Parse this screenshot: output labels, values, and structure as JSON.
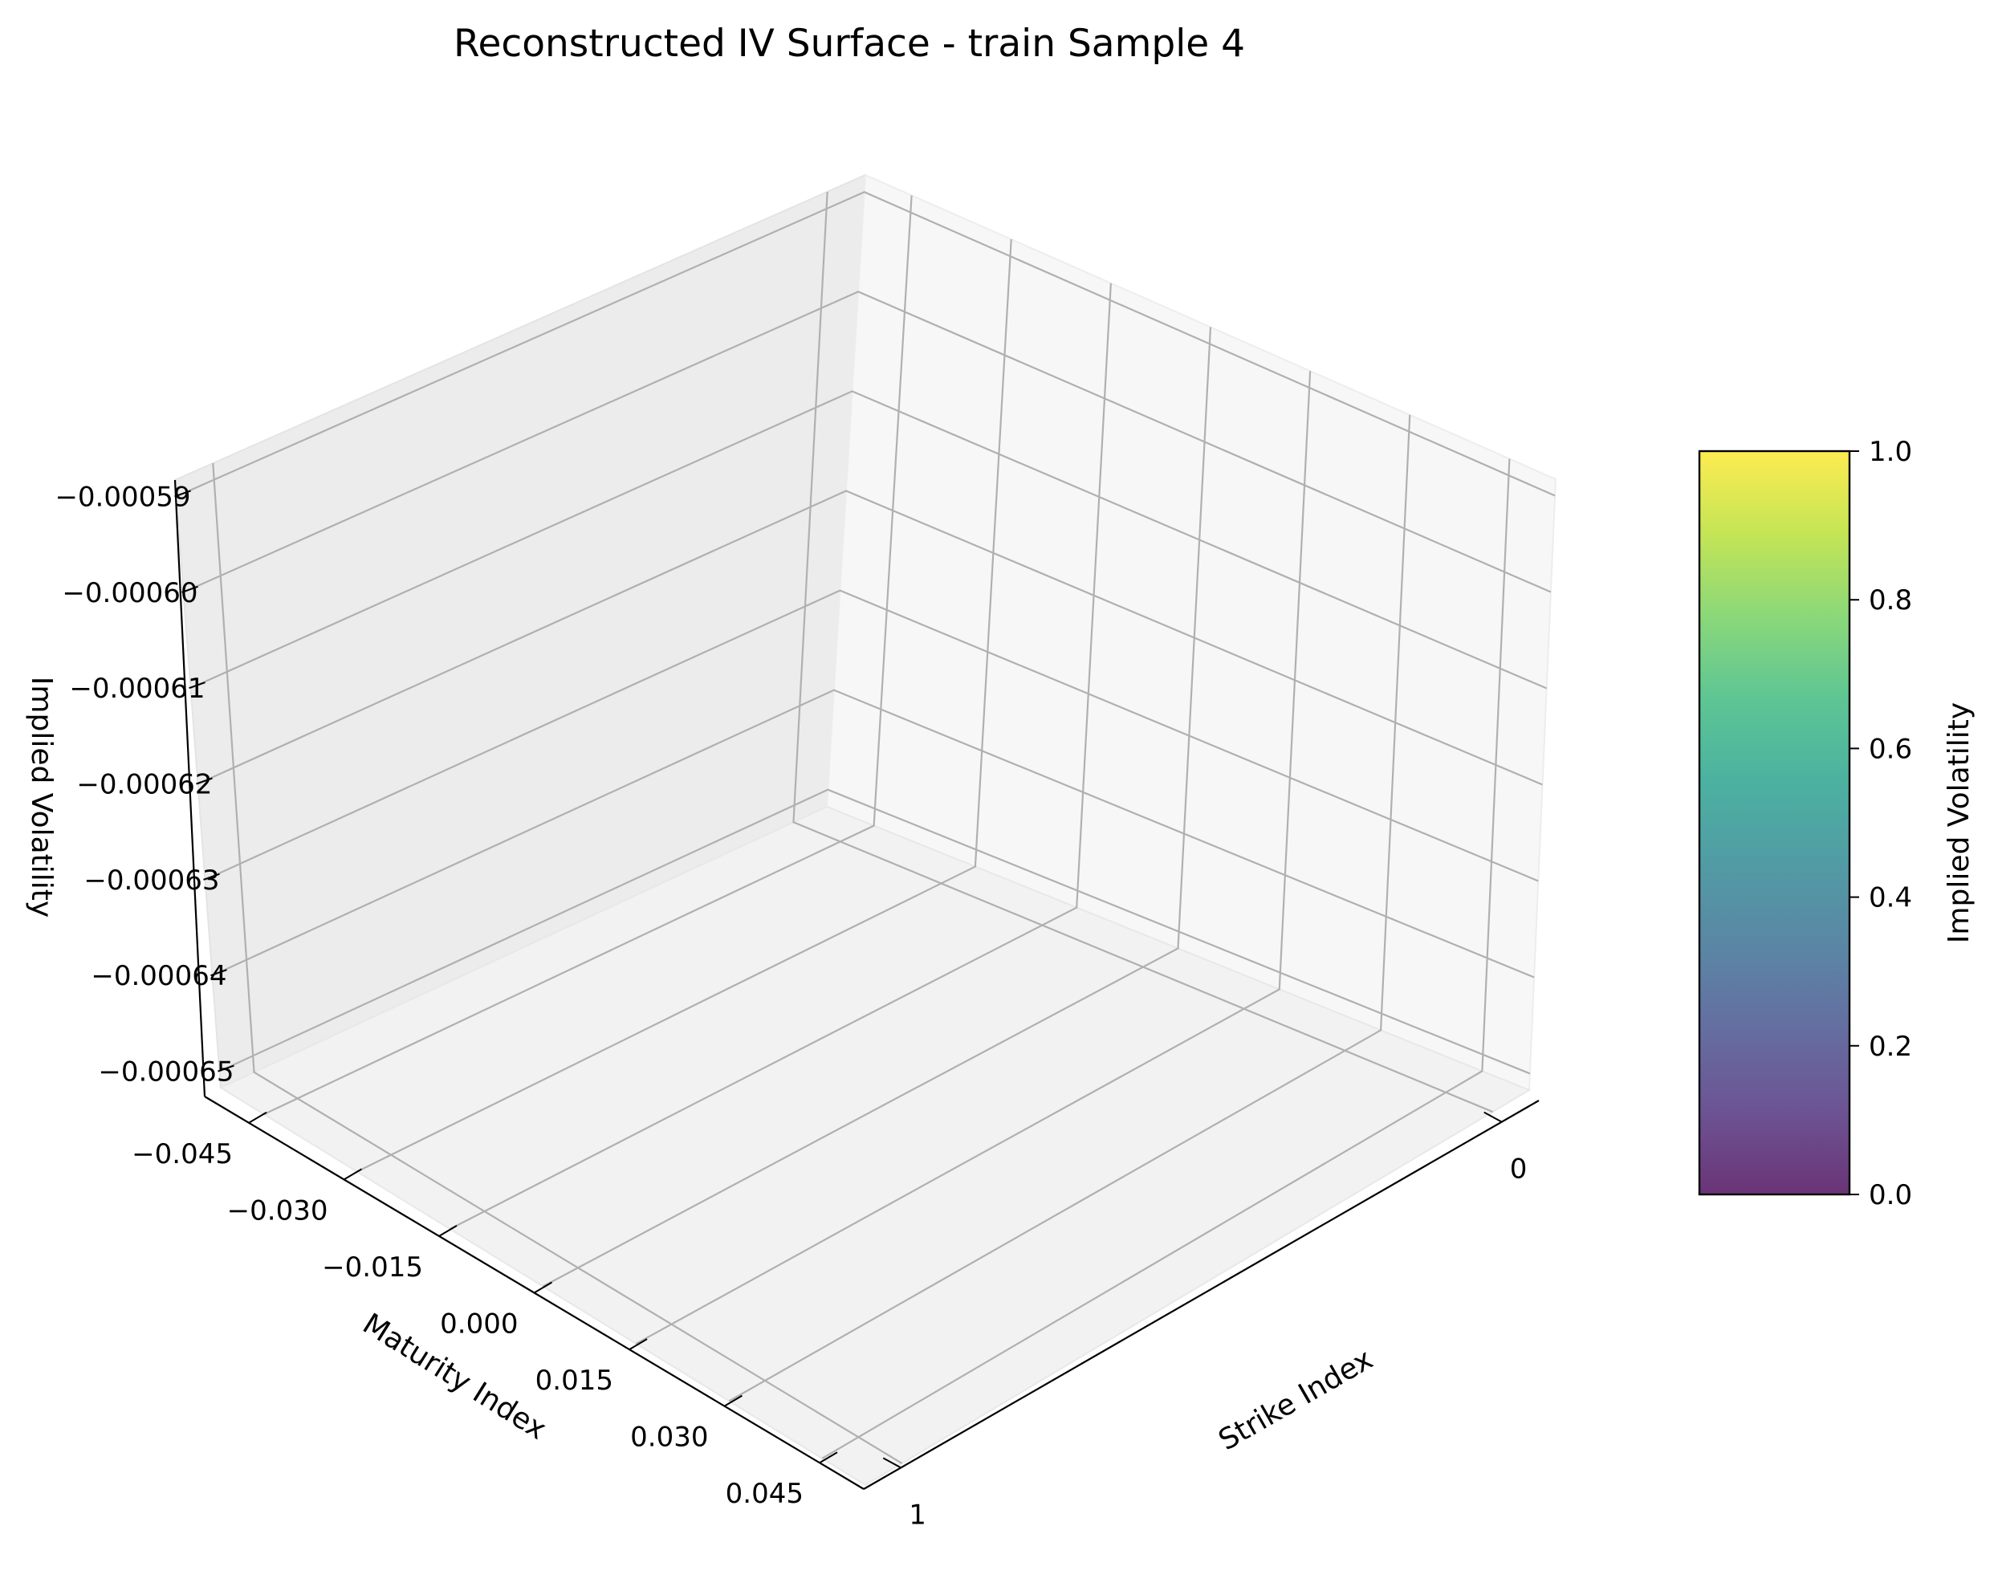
{
  "chart_data": {
    "type": "surface3d",
    "title": "Reconstructed IV Surface - train Sample 4",
    "xlabel": "Strike Index",
    "ylabel": "Maturity Index",
    "zlabel": "Implied Volatility",
    "x_ticks": [
      "0",
      "1"
    ],
    "y_ticks": [
      "−0.045",
      "−0.030",
      "−0.015",
      "0.000",
      "0.015",
      "0.030",
      "0.045"
    ],
    "z_ticks": [
      "−0.00059",
      "−0.00060",
      "−0.00061",
      "−0.00062",
      "−0.00063",
      "−0.00064",
      "−0.00065"
    ],
    "zlim": [
      -0.00065,
      -0.00059
    ],
    "grid": true,
    "surface": [],
    "colorbar": {
      "label": "Implied Volatility",
      "ticks": [
        "0.0",
        "0.2",
        "0.4",
        "0.6",
        "0.8",
        "1.0"
      ],
      "range": [
        0.0,
        1.0
      ],
      "colormap": "viridis",
      "alpha": 0.8,
      "colors": [
        "#440154",
        "#482878",
        "#3e4989",
        "#31688e",
        "#26828e",
        "#1f9e89",
        "#35b779",
        "#6ece58",
        "#b5de2b",
        "#fde725"
      ]
    }
  }
}
